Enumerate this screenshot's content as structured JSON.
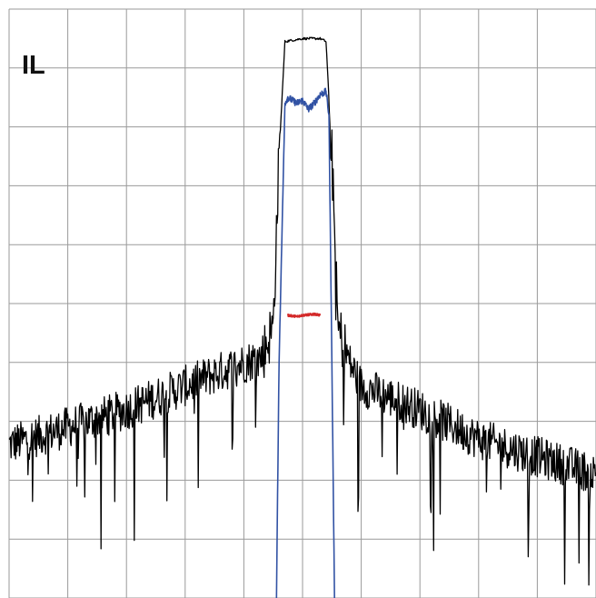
{
  "colors": {
    "grid": "#9a9a9a",
    "black_trace": "#000000",
    "blue_trace": "#3152a4",
    "red_trace": "#d42a2a",
    "label": "#111111",
    "background": "#ffffff"
  },
  "chart_data": {
    "type": "line",
    "label": "IL",
    "grid": true,
    "grid_divisions": {
      "x": 10,
      "y": 10
    },
    "xlim": [
      0,
      10
    ],
    "ylim": [
      0,
      10
    ],
    "ylim_note": "",
    "series": [
      {
        "color": "#000000",
        "description_points": {
          "x": [
            0,
            1,
            2,
            3,
            3.5,
            4.3,
            4.5,
            4.6,
            4.7,
            5.0,
            5.3,
            5.4,
            5.5,
            5.6,
            5.8,
            6.0,
            7.0,
            8.0,
            9.0,
            10.0
          ],
          "y": [
            2.6,
            2.9,
            3.2,
            3.6,
            3.8,
            4.1,
            4.6,
            7.5,
            9.45,
            9.5,
            9.5,
            9.45,
            7.5,
            4.6,
            4.0,
            3.6,
            3.2,
            2.7,
            2.4,
            2.1
          ]
        },
        "noise_amplitude": 0.7
      },
      {
        "color": "#3152a4",
        "description_points": {
          "x": [
            4.55,
            4.6,
            4.7,
            4.75,
            4.9,
            5.0,
            5.1,
            5.2,
            5.3,
            5.4,
            5.45,
            5.5,
            5.55
          ],
          "y": [
            -0.5,
            4.0,
            8.4,
            8.5,
            8.4,
            8.45,
            8.3,
            8.4,
            8.55,
            8.6,
            8.2,
            4.0,
            -0.5
          ]
        }
      },
      {
        "color": "#d42a2a",
        "description_points": {
          "x": [
            4.75,
            4.9,
            5.0,
            5.1,
            5.2,
            5.3
          ],
          "y": [
            4.8,
            4.78,
            4.8,
            4.81,
            4.82,
            4.8
          ]
        }
      }
    ]
  }
}
